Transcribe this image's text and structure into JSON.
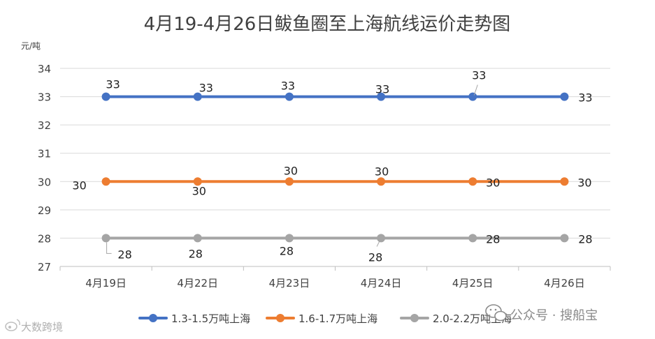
{
  "chart_data": {
    "type": "line",
    "title": "4月19-4月26日鲅鱼圈至上海航线运价走势图",
    "ylabel": "元/吨",
    "xlabel": "",
    "categories": [
      "4月19日",
      "4月22日",
      "4月23日",
      "4月24日",
      "4月25日",
      "4月26日"
    ],
    "ylim": [
      27,
      34
    ],
    "yticks": [
      27,
      28,
      29,
      30,
      31,
      32,
      33,
      34
    ],
    "grid": true,
    "legend_position": "bottom",
    "series": [
      {
        "name": "1.3-1.5万吨上海",
        "color": "#4472C4",
        "values": [
          33,
          33,
          33,
          33,
          33,
          33
        ]
      },
      {
        "name": "1.6-1.7万吨上海",
        "color": "#ED7D31",
        "values": [
          30,
          30,
          30,
          30,
          30,
          30
        ]
      },
      {
        "name": "2.0-2.2万吨上海",
        "color": "#A5A5A5",
        "values": [
          28,
          28,
          28,
          28,
          28,
          28
        ]
      }
    ]
  },
  "watermarks": {
    "left": "大数跨境",
    "right": "公众号 · 搜船宝",
    "left_icon": "weibo-icon",
    "right_icon": "wechat-icon"
  }
}
